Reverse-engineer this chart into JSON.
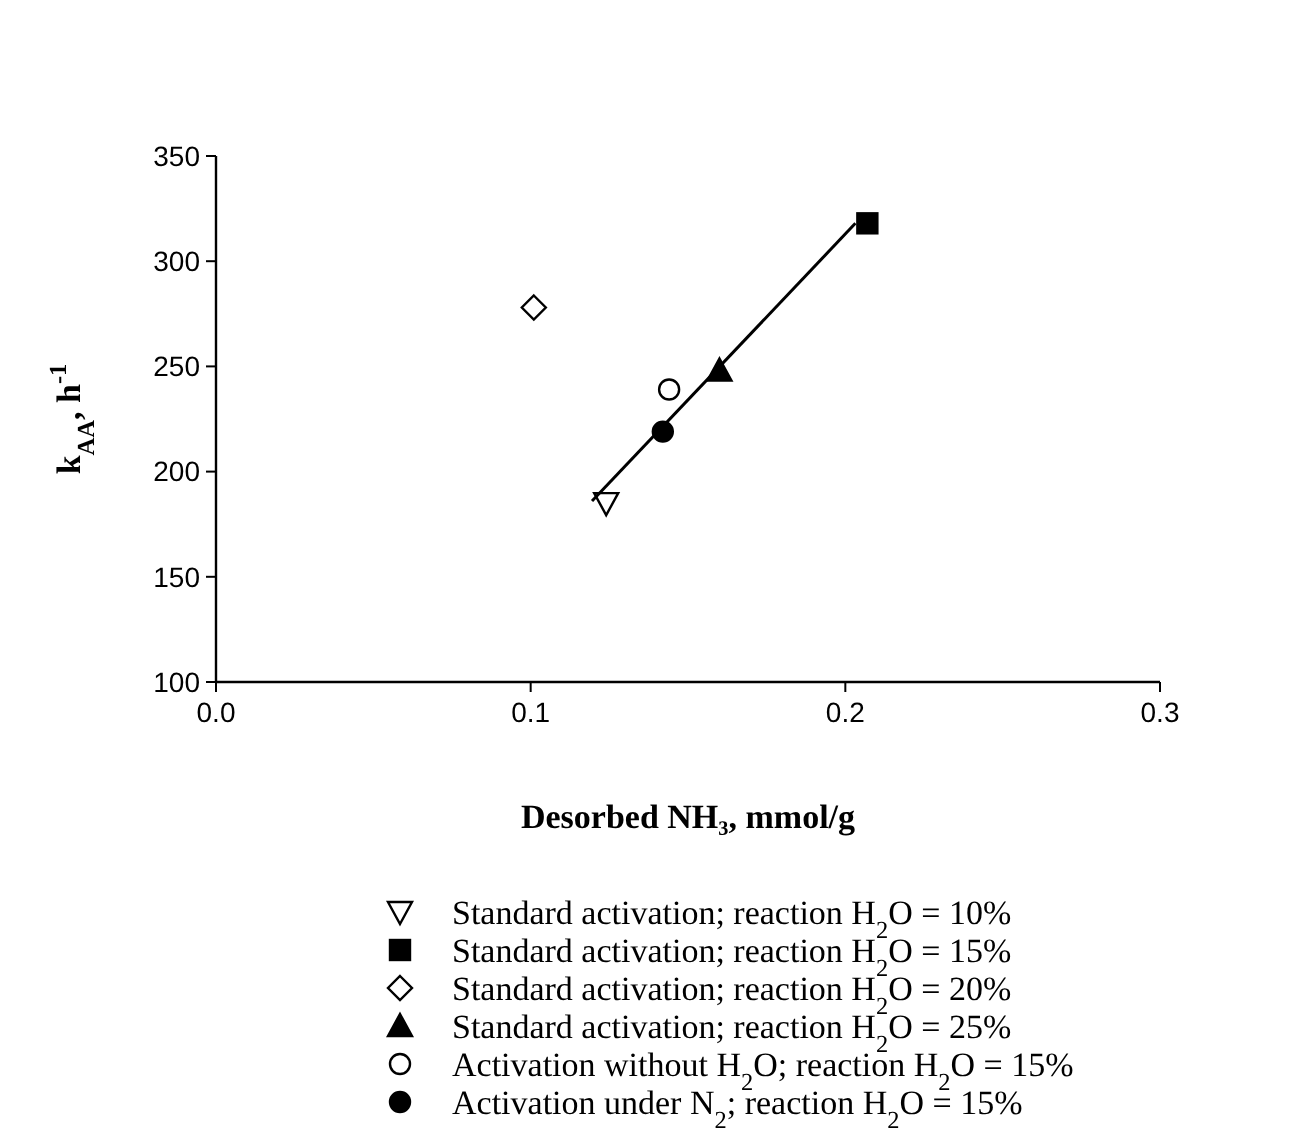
{
  "chart_data": {
    "type": "scatter",
    "xlabel": "Desorbed NH₃, mmol/g",
    "ylabel": "k$_{AA}$, h$^{-1}$",
    "xlim": [
      0,
      0.3
    ],
    "xticks": [
      {
        "value": 0,
        "label": "0.0"
      },
      0.1,
      0.2,
      0.3
    ],
    "ylim": [
      100,
      350
    ],
    "yticks": [
      100,
      150,
      200,
      250,
      300,
      350
    ],
    "grid": false,
    "legend": "bottom",
    "series": [
      {
        "name": "Standard activation; reaction H$_{2}$O = 10%",
        "color": "#000000",
        "marker": "triangle-down-open",
        "x": [
          0.124
        ],
        "values": [
          185
        ]
      },
      {
        "name": "Standard activation; reaction H$_{2}$O = 15%",
        "color": "#000000",
        "marker": "square",
        "x": [
          0.207
        ],
        "values": [
          318
        ]
      },
      {
        "name": "Standard activation; reaction H$_{2}$O = 20%",
        "color": "#000000",
        "marker": "diamond-open",
        "x": [
          0.101
        ],
        "values": [
          278
        ]
      },
      {
        "name": "Standard activation; reaction H$_{2}$O = 25%",
        "color": "#000000",
        "marker": "triangle",
        "x": [
          0.16
        ],
        "values": [
          248
        ]
      },
      {
        "name": "Activation without H$_{2}$O; reaction H$_{2}$O = 15%",
        "color": "#000000",
        "marker": "circle-open",
        "x": [
          0.144
        ],
        "values": [
          239
        ]
      },
      {
        "name": "Activation under N$_{2}$; reaction H$_{2}$O = 15%",
        "color": "#000000",
        "marker": "circle",
        "x": [
          0.142
        ],
        "values": [
          219
        ]
      },
      {
        "type": "line",
        "color": "#000000",
        "line_style": "solid",
        "marker": "none",
        "x": [
          0.1195,
          0.2032
        ],
        "values": [
          186,
          318
        ]
      }
    ]
  }
}
